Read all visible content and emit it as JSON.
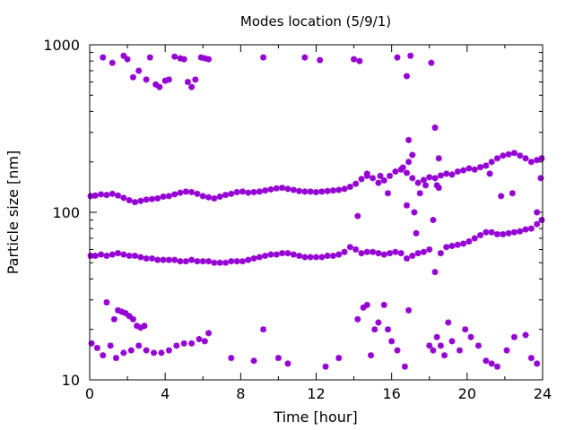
{
  "chart_data": {
    "type": "scatter",
    "title": "Modes location (5/9/1)",
    "xlabel": "Time [hour]",
    "ylabel": "Particle size [nm]",
    "xlim": [
      0,
      24
    ],
    "ylim": [
      10,
      1000
    ],
    "yscale": "log",
    "grid": false,
    "legend": "none",
    "marker": "star",
    "color": "#9400D3",
    "x_ticks": [
      0,
      4,
      8,
      12,
      16,
      20,
      24
    ],
    "x_tick_labels": [
      "0",
      "4",
      "8",
      "12",
      "16",
      "20",
      "24"
    ],
    "y_ticks": [
      10,
      100,
      1000
    ],
    "y_tick_labels": [
      "10",
      "100",
      "1000"
    ],
    "series": [
      {
        "values": [
          [
            0.05,
            125
          ],
          [
            0.3,
            126
          ],
          [
            0.6,
            128
          ],
          [
            0.9,
            127
          ],
          [
            1.2,
            129
          ],
          [
            1.5,
            126
          ],
          [
            1.8,
            122
          ],
          [
            2.1,
            118
          ],
          [
            2.4,
            115
          ],
          [
            2.7,
            117
          ],
          [
            3.0,
            119
          ],
          [
            3.3,
            120
          ],
          [
            3.6,
            121
          ],
          [
            3.9,
            124
          ],
          [
            4.2,
            125
          ],
          [
            4.5,
            128
          ],
          [
            4.8,
            131
          ],
          [
            5.1,
            133
          ],
          [
            5.4,
            132
          ],
          [
            5.7,
            129
          ],
          [
            6.0,
            125
          ],
          [
            6.3,
            123
          ],
          [
            6.6,
            121
          ],
          [
            6.9,
            124
          ],
          [
            7.2,
            127
          ],
          [
            7.5,
            129
          ],
          [
            7.8,
            132
          ],
          [
            8.1,
            133
          ],
          [
            8.4,
            131
          ],
          [
            8.7,
            132
          ],
          [
            9.0,
            133
          ],
          [
            9.3,
            135
          ],
          [
            9.6,
            137
          ],
          [
            9.9,
            139
          ],
          [
            10.2,
            140
          ],
          [
            10.5,
            138
          ],
          [
            10.8,
            136
          ],
          [
            11.1,
            134
          ],
          [
            11.4,
            133
          ],
          [
            11.7,
            133
          ],
          [
            12.0,
            132
          ],
          [
            12.3,
            133
          ],
          [
            12.6,
            134
          ],
          [
            12.9,
            135
          ],
          [
            13.2,
            136
          ],
          [
            13.5,
            138
          ],
          [
            13.8,
            142
          ],
          [
            14.1,
            148
          ],
          [
            14.4,
            158
          ],
          [
            14.7,
            165
          ],
          [
            15.0,
            160
          ],
          [
            15.3,
            150
          ],
          [
            15.6,
            155
          ],
          [
            15.9,
            165
          ],
          [
            16.2,
            175
          ],
          [
            16.5,
            180
          ],
          [
            16.8,
            172
          ],
          [
            17.1,
            160
          ],
          [
            17.4,
            150
          ],
          [
            17.7,
            156
          ],
          [
            18.0,
            162
          ],
          [
            18.3,
            160
          ],
          [
            18.6,
            166
          ],
          [
            18.9,
            170
          ],
          [
            19.2,
            168
          ],
          [
            19.5,
            175
          ],
          [
            19.8,
            178
          ],
          [
            20.1,
            183
          ],
          [
            20.4,
            180
          ],
          [
            20.7,
            186
          ],
          [
            21.0,
            190
          ],
          [
            21.3,
            200
          ],
          [
            21.6,
            210
          ],
          [
            21.9,
            218
          ],
          [
            22.2,
            222
          ],
          [
            22.5,
            226
          ],
          [
            22.8,
            218
          ],
          [
            23.1,
            210
          ],
          [
            23.4,
            200
          ],
          [
            23.7,
            205
          ],
          [
            23.95,
            210
          ]
        ]
      },
      {
        "values": [
          [
            0.05,
            55
          ],
          [
            0.3,
            55
          ],
          [
            0.6,
            56
          ],
          [
            0.9,
            55
          ],
          [
            1.2,
            56
          ],
          [
            1.5,
            57
          ],
          [
            1.8,
            56
          ],
          [
            2.1,
            55
          ],
          [
            2.4,
            55
          ],
          [
            2.7,
            54
          ],
          [
            3.0,
            53
          ],
          [
            3.3,
            53
          ],
          [
            3.6,
            52
          ],
          [
            3.9,
            52
          ],
          [
            4.2,
            52
          ],
          [
            4.5,
            52
          ],
          [
            4.8,
            51
          ],
          [
            5.1,
            51
          ],
          [
            5.4,
            52
          ],
          [
            5.7,
            51
          ],
          [
            6.0,
            51
          ],
          [
            6.3,
            51
          ],
          [
            6.6,
            50
          ],
          [
            6.9,
            50
          ],
          [
            7.2,
            50
          ],
          [
            7.5,
            51
          ],
          [
            7.8,
            51
          ],
          [
            8.1,
            51
          ],
          [
            8.4,
            52
          ],
          [
            8.7,
            53
          ],
          [
            9.0,
            54
          ],
          [
            9.3,
            55
          ],
          [
            9.6,
            56
          ],
          [
            9.9,
            56
          ],
          [
            10.2,
            57
          ],
          [
            10.5,
            57
          ],
          [
            10.8,
            56
          ],
          [
            11.1,
            55
          ],
          [
            11.4,
            54
          ],
          [
            11.7,
            54
          ],
          [
            12.0,
            54
          ],
          [
            12.3,
            54
          ],
          [
            12.6,
            55
          ],
          [
            12.9,
            55
          ],
          [
            13.2,
            56
          ],
          [
            13.5,
            58
          ],
          [
            13.8,
            62
          ],
          [
            14.1,
            60
          ],
          [
            14.4,
            57
          ],
          [
            14.7,
            58
          ],
          [
            15.0,
            58
          ],
          [
            15.3,
            57
          ],
          [
            15.6,
            56
          ],
          [
            15.9,
            57
          ],
          [
            16.2,
            58
          ],
          [
            16.5,
            57
          ],
          [
            16.8,
            53
          ],
          [
            17.1,
            55
          ],
          [
            17.4,
            57
          ],
          [
            17.7,
            58
          ],
          [
            18.0,
            60
          ],
          [
            18.3,
            44
          ],
          [
            18.6,
            57
          ],
          [
            18.9,
            62
          ],
          [
            19.2,
            63
          ],
          [
            19.5,
            64
          ],
          [
            19.8,
            65
          ],
          [
            20.1,
            67
          ],
          [
            20.4,
            70
          ],
          [
            20.7,
            73
          ],
          [
            21.0,
            76
          ],
          [
            21.3,
            76
          ],
          [
            21.6,
            74
          ],
          [
            21.9,
            74
          ],
          [
            22.2,
            75
          ],
          [
            22.5,
            76
          ],
          [
            22.8,
            77
          ],
          [
            23.1,
            79
          ],
          [
            23.4,
            80
          ],
          [
            23.7,
            85
          ],
          [
            23.95,
            90
          ]
        ]
      },
      {
        "values": [
          [
            0.1,
            16.5
          ],
          [
            0.4,
            15.5
          ],
          [
            0.7,
            14
          ],
          [
            0.9,
            29
          ],
          [
            1.1,
            16
          ],
          [
            1.3,
            23
          ],
          [
            1.5,
            26
          ],
          [
            1.7,
            25.5
          ],
          [
            1.9,
            25
          ],
          [
            2.1,
            24
          ],
          [
            2.3,
            23
          ],
          [
            2.5,
            21
          ],
          [
            2.7,
            20.5
          ],
          [
            2.9,
            21
          ],
          [
            1.4,
            13.5
          ],
          [
            1.8,
            14.5
          ],
          [
            2.2,
            15
          ],
          [
            2.6,
            16
          ],
          [
            3.0,
            15
          ],
          [
            3.4,
            14.5
          ],
          [
            3.8,
            14.5
          ],
          [
            4.2,
            15
          ],
          [
            4.6,
            16
          ],
          [
            5.0,
            16.5
          ],
          [
            5.4,
            16.5
          ],
          [
            5.8,
            17.5
          ],
          [
            6.1,
            17
          ],
          [
            6.3,
            19
          ],
          [
            7.5,
            13.5
          ],
          [
            8.7,
            13
          ],
          [
            9.2,
            20
          ],
          [
            10.0,
            13.5
          ],
          [
            10.5,
            12.5
          ],
          [
            12.5,
            12
          ],
          [
            13.2,
            13.5
          ],
          [
            14.2,
            23
          ],
          [
            14.5,
            27
          ],
          [
            14.7,
            28
          ],
          [
            14.9,
            14
          ],
          [
            15.1,
            20
          ],
          [
            15.3,
            22
          ],
          [
            15.6,
            28
          ],
          [
            15.8,
            20
          ],
          [
            16.0,
            17
          ],
          [
            16.3,
            15
          ],
          [
            16.7,
            12
          ],
          [
            16.9,
            26
          ],
          [
            18.0,
            16
          ],
          [
            18.2,
            15
          ],
          [
            18.4,
            18
          ],
          [
            18.6,
            16
          ],
          [
            18.8,
            14
          ],
          [
            19.0,
            22
          ],
          [
            19.2,
            17
          ],
          [
            19.6,
            15
          ],
          [
            19.9,
            20
          ],
          [
            20.2,
            18
          ],
          [
            20.6,
            16
          ],
          [
            21.0,
            13
          ],
          [
            21.3,
            12.5
          ],
          [
            21.6,
            12
          ],
          [
            22.1,
            15
          ],
          [
            22.5,
            18
          ],
          [
            23.1,
            18.5
          ],
          [
            23.4,
            13.5
          ],
          [
            23.7,
            12.5
          ]
        ]
      },
      {
        "values": [
          [
            0.7,
            840
          ],
          [
            1.2,
            780
          ],
          [
            1.8,
            860
          ],
          [
            2.0,
            820
          ],
          [
            2.3,
            640
          ],
          [
            2.6,
            700
          ],
          [
            3.0,
            620
          ],
          [
            3.2,
            840
          ],
          [
            3.5,
            580
          ],
          [
            3.7,
            560
          ],
          [
            4.0,
            610
          ],
          [
            4.2,
            620
          ],
          [
            4.5,
            850
          ],
          [
            4.8,
            830
          ],
          [
            5.0,
            820
          ],
          [
            5.2,
            600
          ],
          [
            5.4,
            560
          ],
          [
            5.6,
            620
          ],
          [
            5.9,
            840
          ],
          [
            6.1,
            830
          ],
          [
            6.3,
            820
          ],
          [
            9.2,
            840
          ],
          [
            11.4,
            840
          ],
          [
            12.2,
            810
          ],
          [
            14.0,
            820
          ],
          [
            14.3,
            800
          ],
          [
            16.3,
            840
          ],
          [
            16.8,
            650
          ],
          [
            17.0,
            860
          ],
          [
            18.1,
            780
          ],
          [
            18.3,
            320
          ],
          [
            18.5,
            210
          ],
          [
            16.9,
            270
          ],
          [
            17.1,
            220
          ],
          [
            16.8,
            110
          ],
          [
            16.9,
            200
          ],
          [
            17.2,
            100
          ],
          [
            17.5,
            130
          ],
          [
            17.8,
            145
          ],
          [
            18.2,
            90
          ],
          [
            18.4,
            145
          ],
          [
            14.2,
            95
          ],
          [
            14.7,
            170
          ],
          [
            15.4,
            165
          ],
          [
            15.8,
            130
          ],
          [
            16.6,
            185
          ],
          [
            17.3,
            75
          ],
          [
            18.5,
            140
          ],
          [
            21.2,
            170
          ],
          [
            21.8,
            125
          ],
          [
            22.4,
            130
          ],
          [
            23.7,
            100
          ],
          [
            23.9,
            160
          ]
        ]
      }
    ]
  }
}
